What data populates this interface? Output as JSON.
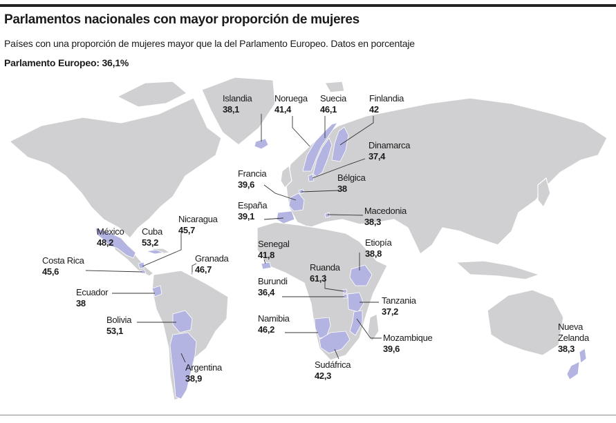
{
  "title": "Parlamentos nacionales con mayor proporción de mujeres",
  "subtitle": "Países con una proporción de mujeres mayor que la del Parlamento Europeo. Datos en porcentaje",
  "reference": "Parlamento Europeo: 36,1%",
  "colors": {
    "land": "#d0d0d2",
    "highlight": "#b4b4e2",
    "text": "#1a1a1a"
  },
  "countries": {
    "islandia": {
      "name": "Islandia",
      "value": "38,1"
    },
    "noruega": {
      "name": "Noruega",
      "value": "41,4"
    },
    "suecia": {
      "name": "Suecia",
      "value": "46,1"
    },
    "finlandia": {
      "name": "Finlandia",
      "value": "42"
    },
    "dinamarca": {
      "name": "Dinamarca",
      "value": "37,4"
    },
    "francia": {
      "name": "Francia",
      "value": "39,6"
    },
    "belgica": {
      "name": "Bélgica",
      "value": "38"
    },
    "espana": {
      "name": "España",
      "value": "39,1"
    },
    "macedonia": {
      "name": "Macedonia",
      "value": "38,3"
    },
    "mexico": {
      "name": "México",
      "value": "48,2"
    },
    "cuba": {
      "name": "Cuba",
      "value": "53,2"
    },
    "nicaragua": {
      "name": "Nicaragua",
      "value": "45,7"
    },
    "granada": {
      "name": "Granada",
      "value": "46,7"
    },
    "costa_rica": {
      "name": "Costa Rica",
      "value": "45,6"
    },
    "ecuador": {
      "name": "Ecuador",
      "value": "38"
    },
    "bolivia": {
      "name": "Bolivia",
      "value": "53,1"
    },
    "argentina": {
      "name": "Argentina",
      "value": "38,9"
    },
    "senegal": {
      "name": "Senegal",
      "value": "41,8"
    },
    "etiopia": {
      "name": "Etiopía",
      "value": "38,8"
    },
    "ruanda": {
      "name": "Ruanda",
      "value": "61,3"
    },
    "burundi": {
      "name": "Burundi",
      "value": "36,4"
    },
    "tanzania": {
      "name": "Tanzania",
      "value": "37,2"
    },
    "namibia": {
      "name": "Namibia",
      "value": "46,2"
    },
    "mozambique": {
      "name": "Mozambique",
      "value": "39,6"
    },
    "sudafrica": {
      "name": "Sudáfrica",
      "value": "42,3"
    },
    "nueva_zelanda": {
      "name": "Nueva Zelanda",
      "name_line1": "Nueva",
      "name_line2": "Zelanda",
      "value": "38,3"
    }
  }
}
